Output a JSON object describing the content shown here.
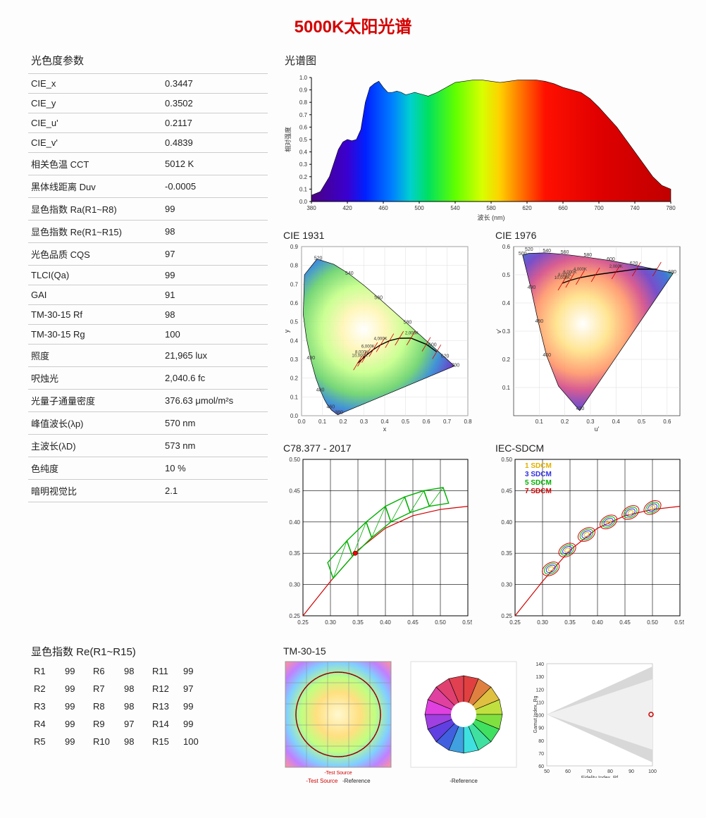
{
  "page_title": "5000K太阳光谱",
  "params": {
    "section_label": "光色度参数",
    "rows": [
      {
        "label": "CIE_x",
        "value": "0.3447"
      },
      {
        "label": "CIE_y",
        "value": "0.3502"
      },
      {
        "label": "CIE_u'",
        "value": "0.2117"
      },
      {
        "label": "CIE_v'",
        "value": "0.4839"
      },
      {
        "label": "相关色温 CCT",
        "value": "5012 K"
      },
      {
        "label": "黑体线距离 Duv",
        "value": "-0.0005"
      },
      {
        "label": "显色指数 Ra(R1~R8)",
        "value": "99"
      },
      {
        "label": "显色指数 Re(R1~R15)",
        "value": "98"
      },
      {
        "label": "光色品质 CQS",
        "value": "97"
      },
      {
        "label": "TLCI(Qa)",
        "value": "99"
      },
      {
        "label": "GAI",
        "value": "91"
      },
      {
        "label": "TM-30-15 Rf",
        "value": "98"
      },
      {
        "label": "TM-30-15 Rg",
        "value": "100"
      },
      {
        "label": "照度",
        "value": "21,965 lux"
      },
      {
        "label": "呎烛光",
        "value": "2,040.6 fc"
      },
      {
        "label": "光量子通量密度",
        "value": "376.63 μmol/m²s"
      },
      {
        "label": "峰值波长(λp)",
        "value": "570 nm"
      },
      {
        "label": "主波长(λD)",
        "value": "573 nm"
      },
      {
        "label": "色纯度",
        "value": "10 %"
      },
      {
        "label": "暗明视觉比",
        "value": "2.1"
      }
    ]
  },
  "spectrum": {
    "title": "光谱图",
    "xlabel": "波长 (nm)",
    "ylabel": "相对强度",
    "xmin": 380,
    "xmax": 780,
    "ymin": 0.0,
    "ymax": 1.0,
    "xticks": [
      380,
      420,
      460,
      500,
      540,
      580,
      620,
      660,
      700,
      740,
      780
    ],
    "yticks": [
      0.0,
      0.1,
      0.2,
      0.3,
      0.4,
      0.5,
      0.6,
      0.7,
      0.8,
      0.9,
      1.0
    ],
    "data": [
      [
        380,
        0.05
      ],
      [
        390,
        0.08
      ],
      [
        400,
        0.2
      ],
      [
        410,
        0.42
      ],
      [
        415,
        0.48
      ],
      [
        420,
        0.5
      ],
      [
        425,
        0.49
      ],
      [
        430,
        0.5
      ],
      [
        435,
        0.58
      ],
      [
        440,
        0.8
      ],
      [
        445,
        0.92
      ],
      [
        450,
        0.95
      ],
      [
        455,
        0.97
      ],
      [
        460,
        0.92
      ],
      [
        465,
        0.88
      ],
      [
        470,
        0.88
      ],
      [
        475,
        0.89
      ],
      [
        480,
        0.88
      ],
      [
        485,
        0.86
      ],
      [
        490,
        0.87
      ],
      [
        495,
        0.88
      ],
      [
        500,
        0.87
      ],
      [
        510,
        0.85
      ],
      [
        520,
        0.88
      ],
      [
        530,
        0.92
      ],
      [
        540,
        0.96
      ],
      [
        550,
        0.97
      ],
      [
        560,
        0.98
      ],
      [
        570,
        0.98
      ],
      [
        580,
        0.97
      ],
      [
        590,
        0.96
      ],
      [
        600,
        0.97
      ],
      [
        610,
        0.98
      ],
      [
        620,
        0.98
      ],
      [
        630,
        0.98
      ],
      [
        640,
        0.97
      ],
      [
        650,
        0.95
      ],
      [
        660,
        0.92
      ],
      [
        670,
        0.9
      ],
      [
        680,
        0.88
      ],
      [
        690,
        0.83
      ],
      [
        700,
        0.76
      ],
      [
        710,
        0.68
      ],
      [
        720,
        0.6
      ],
      [
        730,
        0.5
      ],
      [
        740,
        0.4
      ],
      [
        750,
        0.3
      ],
      [
        760,
        0.2
      ],
      [
        770,
        0.13
      ],
      [
        780,
        0.1
      ]
    ],
    "rainbow_stops": [
      {
        "wl": 380,
        "color": "#4b0082"
      },
      {
        "wl": 420,
        "color": "#3a00d0"
      },
      {
        "wl": 440,
        "color": "#0020ff"
      },
      {
        "wl": 470,
        "color": "#0080ff"
      },
      {
        "wl": 490,
        "color": "#00d0d0"
      },
      {
        "wl": 510,
        "color": "#00e060"
      },
      {
        "wl": 540,
        "color": "#60ff00"
      },
      {
        "wl": 570,
        "color": "#d8ff00"
      },
      {
        "wl": 590,
        "color": "#ffd000"
      },
      {
        "wl": 610,
        "color": "#ff8000"
      },
      {
        "wl": 640,
        "color": "#ff1000"
      },
      {
        "wl": 700,
        "color": "#e00000"
      },
      {
        "wl": 780,
        "color": "#c00000"
      }
    ]
  },
  "cie_charts": {
    "cie1931": {
      "title": "CIE 1931",
      "xlabel": "x",
      "ylabel": "y",
      "xmin": 0.0,
      "xmax": 0.8,
      "ymin": 0.0,
      "ymax": 0.9,
      "xticks": [
        0.0,
        0.1,
        0.2,
        0.3,
        0.4,
        0.5,
        0.6,
        0.7,
        0.8
      ],
      "yticks": [
        0.0,
        0.1,
        0.2,
        0.3,
        0.4,
        0.5,
        0.6,
        0.7,
        0.8,
        0.9
      ],
      "outline": [
        [
          0.1741,
          0.005
        ],
        [
          0.144,
          0.0297
        ],
        [
          0.1241,
          0.0578
        ],
        [
          0.1096,
          0.0868
        ],
        [
          0.0913,
          0.1327
        ],
        [
          0.0687,
          0.2007
        ],
        [
          0.0454,
          0.295
        ],
        [
          0.0235,
          0.4127
        ],
        [
          0.0082,
          0.5384
        ],
        [
          0.0139,
          0.7502
        ],
        [
          0.0743,
          0.8338
        ],
        [
          0.1547,
          0.8059
        ],
        [
          0.2296,
          0.7543
        ],
        [
          0.3016,
          0.6923
        ],
        [
          0.3731,
          0.6245
        ],
        [
          0.4441,
          0.5547
        ],
        [
          0.5125,
          0.4866
        ],
        [
          0.5752,
          0.4242
        ],
        [
          0.627,
          0.3725
        ],
        [
          0.6658,
          0.334
        ],
        [
          0.6915,
          0.3083
        ],
        [
          0.714,
          0.2859
        ],
        [
          0.7355,
          0.2645
        ],
        [
          0.1741,
          0.005
        ]
      ],
      "planckian": [
        [
          0.65,
          0.34
        ],
        [
          0.6,
          0.38
        ],
        [
          0.526,
          0.413
        ],
        [
          0.47,
          0.412
        ],
        [
          0.423,
          0.399
        ],
        [
          0.38,
          0.377
        ],
        [
          0.345,
          0.352
        ],
        [
          0.31,
          0.32
        ],
        [
          0.29,
          0.3
        ],
        [
          0.27,
          0.28
        ]
      ],
      "edge_labels": [
        [
          "380",
          0.18,
          0.01
        ],
        [
          "460",
          0.14,
          0.04
        ],
        [
          "480",
          0.09,
          0.13
        ],
        [
          "490",
          0.045,
          0.3
        ],
        [
          "520",
          0.08,
          0.83
        ],
        [
          "540",
          0.23,
          0.75
        ],
        [
          "560",
          0.37,
          0.62
        ],
        [
          "580",
          0.51,
          0.49
        ],
        [
          "600",
          0.63,
          0.37
        ],
        [
          "620",
          0.69,
          0.31
        ],
        [
          "700",
          0.74,
          0.26
        ]
      ],
      "cct_labels": [
        [
          "2,000K",
          0.53,
          0.41
        ],
        [
          "4,000K",
          0.38,
          0.38
        ],
        [
          "6,000K",
          0.32,
          0.34
        ],
        [
          "8,000K",
          0.29,
          0.31
        ],
        [
          "10,000K",
          0.28,
          0.29
        ]
      ]
    },
    "cie1976": {
      "title": "CIE 1976",
      "xlabel": "u'",
      "ylabel": "v'",
      "xmin": 0.0,
      "xmax": 0.65,
      "ymin": 0.0,
      "ymax": 0.6,
      "xticks": [
        0.1,
        0.2,
        0.3,
        0.4,
        0.5,
        0.6
      ],
      "yticks": [
        0.1,
        0.2,
        0.3,
        0.4,
        0.5,
        0.6
      ],
      "outline": [
        [
          0.258,
          0.018
        ],
        [
          0.1752,
          0.105
        ],
        [
          0.128,
          0.215
        ],
        [
          0.097,
          0.33
        ],
        [
          0.068,
          0.45
        ],
        [
          0.046,
          0.53
        ],
        [
          0.035,
          0.57
        ],
        [
          0.059,
          0.576
        ],
        [
          0.125,
          0.578
        ],
        [
          0.203,
          0.572
        ],
        [
          0.29,
          0.562
        ],
        [
          0.38,
          0.55
        ],
        [
          0.47,
          0.535
        ],
        [
          0.55,
          0.52
        ],
        [
          0.624,
          0.506
        ],
        [
          0.258,
          0.018
        ]
      ],
      "planckian": [
        [
          0.56,
          0.52
        ],
        [
          0.48,
          0.52
        ],
        [
          0.4,
          0.51
        ],
        [
          0.32,
          0.5
        ],
        [
          0.26,
          0.49
        ],
        [
          0.22,
          0.48
        ],
        [
          0.19,
          0.47
        ]
      ],
      "edge_labels": [
        [
          "420",
          0.26,
          0.02
        ],
        [
          "460",
          0.13,
          0.21
        ],
        [
          "480",
          0.1,
          0.33
        ],
        [
          "490",
          0.07,
          0.45
        ],
        [
          "500",
          0.035,
          0.57
        ],
        [
          "520",
          0.06,
          0.585
        ],
        [
          "540",
          0.13,
          0.58
        ],
        [
          "560",
          0.2,
          0.575
        ],
        [
          "580",
          0.29,
          0.565
        ],
        [
          "600",
          0.38,
          0.55
        ],
        [
          "620",
          0.47,
          0.535
        ],
        [
          "680",
          0.62,
          0.505
        ]
      ],
      "cct_labels": [
        [
          "2,000K",
          0.4,
          0.51
        ],
        [
          "4,000K",
          0.26,
          0.5
        ],
        [
          "6,000K",
          0.22,
          0.49
        ],
        [
          "8,000K",
          0.2,
          0.48
        ],
        [
          "10,000K",
          0.19,
          0.47
        ]
      ]
    }
  },
  "grid_charts": {
    "c78": {
      "title": "C78.377 - 2017",
      "xmin": 0.25,
      "xmax": 0.55,
      "ymin": 0.25,
      "ymax": 0.5,
      "xticks": [
        0.25,
        0.3,
        0.35,
        0.4,
        0.45,
        0.5,
        0.55
      ],
      "yticks": [
        0.25,
        0.3,
        0.35,
        0.4,
        0.45,
        0.5
      ],
      "curve": [
        [
          0.25,
          0.25
        ],
        [
          0.3,
          0.305
        ],
        [
          0.35,
          0.355
        ],
        [
          0.4,
          0.39
        ],
        [
          0.45,
          0.41
        ],
        [
          0.5,
          0.42
        ],
        [
          0.55,
          0.425
        ]
      ],
      "quads": [
        [
          [
            0.305,
            0.31
          ],
          [
            0.34,
            0.345
          ],
          [
            0.33,
            0.37
          ],
          [
            0.295,
            0.335
          ]
        ],
        [
          [
            0.34,
            0.345
          ],
          [
            0.375,
            0.375
          ],
          [
            0.365,
            0.4
          ],
          [
            0.33,
            0.37
          ]
        ],
        [
          [
            0.375,
            0.375
          ],
          [
            0.41,
            0.4
          ],
          [
            0.4,
            0.425
          ],
          [
            0.365,
            0.4
          ]
        ],
        [
          [
            0.41,
            0.4
          ],
          [
            0.445,
            0.415
          ],
          [
            0.435,
            0.44
          ],
          [
            0.4,
            0.425
          ]
        ],
        [
          [
            0.445,
            0.415
          ],
          [
            0.48,
            0.425
          ],
          [
            0.47,
            0.45
          ],
          [
            0.435,
            0.44
          ]
        ],
        [
          [
            0.48,
            0.425
          ],
          [
            0.515,
            0.43
          ],
          [
            0.505,
            0.455
          ],
          [
            0.47,
            0.45
          ]
        ]
      ],
      "quad_color": "#00b000",
      "point": [
        0.345,
        0.35
      ],
      "point_color": "#ff0000"
    },
    "iec": {
      "title": "IEC-SDCM",
      "xmin": 0.25,
      "xmax": 0.55,
      "ymin": 0.25,
      "ymax": 0.5,
      "xticks": [
        0.25,
        0.3,
        0.35,
        0.4,
        0.45,
        0.5,
        0.55
      ],
      "yticks": [
        0.25,
        0.3,
        0.35,
        0.4,
        0.45,
        0.5
      ],
      "curve": [
        [
          0.25,
          0.25
        ],
        [
          0.3,
          0.305
        ],
        [
          0.35,
          0.355
        ],
        [
          0.4,
          0.39
        ],
        [
          0.45,
          0.41
        ],
        [
          0.5,
          0.42
        ],
        [
          0.55,
          0.425
        ]
      ],
      "ellipse_centers": [
        [
          0.315,
          0.325
        ],
        [
          0.345,
          0.355
        ],
        [
          0.38,
          0.38
        ],
        [
          0.42,
          0.4
        ],
        [
          0.46,
          0.415
        ],
        [
          0.5,
          0.423
        ]
      ],
      "ellipse_colors": [
        "#e0b000",
        "#3030e0",
        "#00b000",
        "#d00000"
      ],
      "legend": [
        [
          "1 SDCM",
          "#e0b000"
        ],
        [
          "3 SDCM",
          "#3030e0"
        ],
        [
          "5 SDCM",
          "#00b000"
        ],
        [
          "7 SDCM",
          "#d00000"
        ]
      ]
    }
  },
  "re": {
    "title": "显色指数 Re(R1~R15)",
    "values": [
      [
        "R1",
        "99",
        "R6",
        "98",
        "R11",
        "99"
      ],
      [
        "R2",
        "99",
        "R7",
        "98",
        "R12",
        "97"
      ],
      [
        "R3",
        "99",
        "R8",
        "98",
        "R13",
        "99"
      ],
      [
        "R4",
        "99",
        "R9",
        "97",
        "R14",
        "99"
      ],
      [
        "R5",
        "99",
        "R10",
        "98",
        "R15",
        "100"
      ]
    ]
  },
  "tm30": {
    "title": "TM-30-15",
    "legend_test": "-Test Source",
    "legend_ref": "-Reference",
    "fidelity_label": "Fidelity Index, Rf",
    "gamut_label": "Gamut Index, Rg"
  }
}
